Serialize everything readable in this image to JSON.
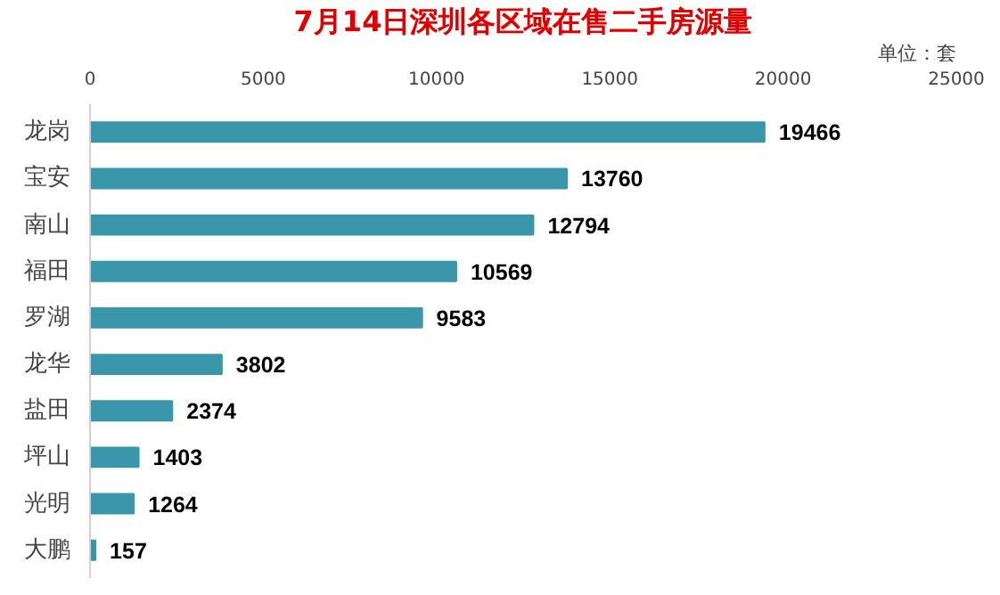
{
  "chart_data": {
    "type": "bar",
    "orientation": "horizontal",
    "title": "7月14日深圳各区域在售二手房源量",
    "annotations": [
      "单位：套"
    ],
    "categories": [
      "龙岗",
      "宝安",
      "南山",
      "福田",
      "罗湖",
      "龙华",
      "盐田",
      "坪山",
      "光明",
      "大鹏"
    ],
    "values": [
      19466,
      13760,
      12794,
      10569,
      9583,
      3802,
      2374,
      1403,
      1264,
      157
    ],
    "color": "#3a97ab",
    "xlim": [
      0,
      25000
    ],
    "xticks": [
      0,
      5000,
      10000,
      15000,
      20000,
      25000
    ],
    "grid": false,
    "data_labels": true
  }
}
